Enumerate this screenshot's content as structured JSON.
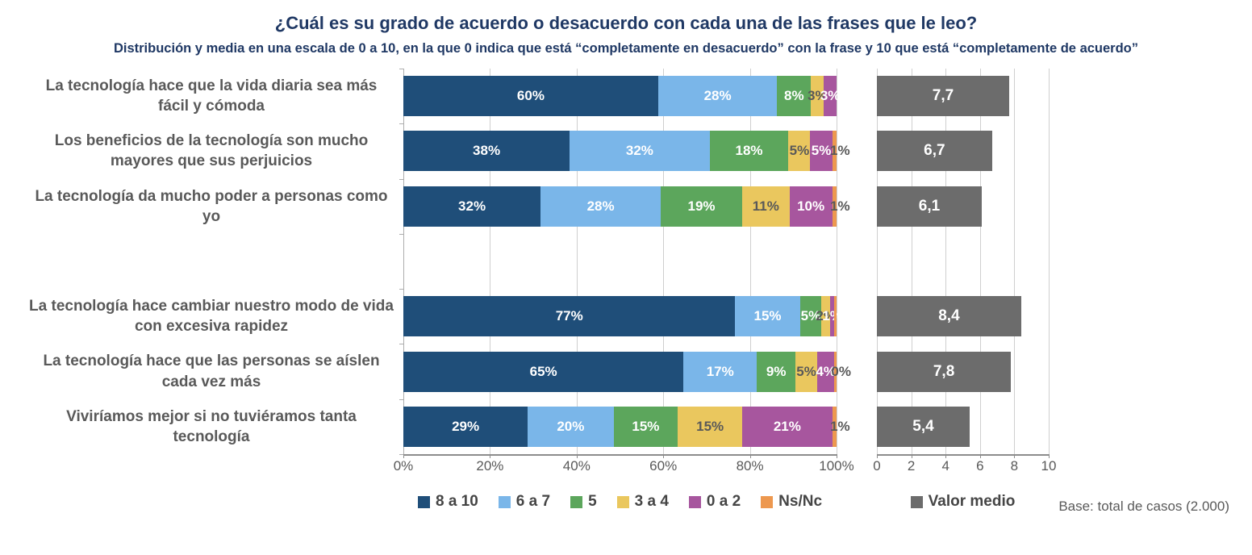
{
  "title": "¿Cuál es su grado de acuerdo o desacuerdo con cada una de las frases que le leo?",
  "subtitle": "Distribución y media en una escala de 0 a 10, en la que 0 indica que está “completamente en desacuerdo” con la frase y 10 que  está “completamente de acuerdo”",
  "base_note": "Base: total de casos  (2.000)",
  "legend": {
    "items": [
      {
        "label": "8 a 10",
        "color": "#1F4E79"
      },
      {
        "label": "6 a 7",
        "color": "#7AB6E9"
      },
      {
        "label": "5",
        "color": "#5CA65C"
      },
      {
        "label": "3 a 4",
        "color": "#EAC75E"
      },
      {
        "label": "0 a 2",
        "color": "#A7569E"
      },
      {
        "label": "Ns/Nc",
        "color": "#ED984F"
      }
    ],
    "mean_label": "Valor medio",
    "mean_color": "#6C6C6C"
  },
  "axes": {
    "left_ticks": [
      "0%",
      "20%",
      "40%",
      "60%",
      "80%",
      "100%"
    ],
    "right_ticks": [
      "0",
      "2",
      "4",
      "6",
      "8",
      "10"
    ]
  },
  "rows": [
    {
      "label": "La tecnología hace que la vida diaria sea más fácil y cómoda",
      "segments": [
        {
          "pct": 60,
          "label": "60%"
        },
        {
          "pct": 28,
          "label": "28%"
        },
        {
          "pct": 8,
          "label": "8%"
        },
        {
          "pct": 3,
          "label": "3%"
        },
        {
          "pct": 3,
          "label": "3%"
        },
        {
          "pct": 0,
          "label": ""
        }
      ],
      "mean": 7.7,
      "mean_label": "7,7"
    },
    {
      "label": "Los beneficios de la tecnología son mucho mayores que sus perjuicios",
      "segments": [
        {
          "pct": 38,
          "label": "38%"
        },
        {
          "pct": 32,
          "label": "32%"
        },
        {
          "pct": 18,
          "label": "18%"
        },
        {
          "pct": 5,
          "label": "5%"
        },
        {
          "pct": 5,
          "label": "5%"
        },
        {
          "pct": 1,
          "label": "1%"
        }
      ],
      "mean": 6.7,
      "mean_label": "6,7"
    },
    {
      "label": "La tecnología da mucho poder a personas como yo",
      "segments": [
        {
          "pct": 32,
          "label": "32%"
        },
        {
          "pct": 28,
          "label": "28%"
        },
        {
          "pct": 19,
          "label": "19%"
        },
        {
          "pct": 11,
          "label": "11%"
        },
        {
          "pct": 10,
          "label": "10%"
        },
        {
          "pct": 1,
          "label": "1%"
        }
      ],
      "mean": 6.1,
      "mean_label": "6,1"
    },
    {
      "label": "La tecnología hace cambiar nuestro modo de vida con excesiva rapidez",
      "segments": [
        {
          "pct": 77,
          "label": "77%"
        },
        {
          "pct": 15,
          "label": "15%"
        },
        {
          "pct": 5,
          "label": "5%"
        },
        {
          "pct": 2,
          "label": "2%"
        },
        {
          "pct": 1,
          "label": "1%"
        },
        {
          "pct": 0.5,
          "label": ""
        }
      ],
      "mean": 8.4,
      "mean_label": "8,4"
    },
    {
      "label": "La tecnología hace que las personas se aíslen cada vez más",
      "segments": [
        {
          "pct": 65,
          "label": "65%"
        },
        {
          "pct": 17,
          "label": "17%"
        },
        {
          "pct": 9,
          "label": "9%"
        },
        {
          "pct": 5,
          "label": "5%"
        },
        {
          "pct": 4,
          "label": "4%"
        },
        {
          "pct": 0.5,
          "label": "0%"
        }
      ],
      "mean": 7.8,
      "mean_label": "7,8"
    },
    {
      "label": "Viviríamos mejor si no tuviéramos tanta tecnología",
      "segments": [
        {
          "pct": 29,
          "label": "29%"
        },
        {
          "pct": 20,
          "label": "20%"
        },
        {
          "pct": 15,
          "label": "15%"
        },
        {
          "pct": 15,
          "label": "15%"
        },
        {
          "pct": 21,
          "label": "21%"
        },
        {
          "pct": 1,
          "label": "1%"
        }
      ],
      "mean": 5.4,
      "mean_label": "5,4"
    }
  ],
  "chart_data": {
    "type": "bar",
    "orientation": "horizontal",
    "stacked": true,
    "title": "¿Cuál es su grado de acuerdo o desacuerdo con cada una de las frases que le leo?",
    "subtitle": "Distribución y media en una escala de 0 a 10, en la que 0 indica que está “completamente en desacuerdo” con la frase y 10 que  está “completamente de acuerdo”",
    "categories": [
      "La tecnología hace que la vida diaria sea más fácil y cómoda",
      "Los beneficios de la tecnología son mucho mayores que sus perjuicios",
      "La tecnología da mucho poder a personas como yo",
      "La tecnología hace cambiar nuestro modo de vida con excesiva rapidez",
      "La tecnología hace que las personas se aíslen cada vez más",
      "Viviríamos mejor si no tuviéramos tanta tecnología"
    ],
    "series": [
      {
        "name": "8 a 10",
        "color": "#1F4E79",
        "values": [
          60,
          38,
          32,
          77,
          65,
          29
        ]
      },
      {
        "name": "6 a 7",
        "color": "#7AB6E9",
        "values": [
          28,
          32,
          28,
          15,
          17,
          20
        ]
      },
      {
        "name": "5",
        "color": "#5CA65C",
        "values": [
          8,
          18,
          19,
          5,
          9,
          15
        ]
      },
      {
        "name": "3 a 4",
        "color": "#EAC75E",
        "values": [
          3,
          5,
          11,
          2,
          5,
          15
        ]
      },
      {
        "name": "0 a 2",
        "color": "#A7569E",
        "values": [
          3,
          5,
          10,
          1,
          4,
          21
        ]
      },
      {
        "name": "Ns/Nc",
        "color": "#ED984F",
        "values": [
          0,
          1,
          1,
          0,
          0,
          1
        ]
      }
    ],
    "secondary_chart": {
      "name": "Valor medio",
      "type": "bar",
      "color": "#6C6C6C",
      "values": [
        7.7,
        6.7,
        6.1,
        8.4,
        7.8,
        5.4
      ],
      "xlim": [
        0,
        10
      ],
      "ticks": [
        0,
        2,
        4,
        6,
        8,
        10
      ]
    },
    "x_axis": {
      "range_pct": [
        0,
        100
      ],
      "ticks": [
        "0%",
        "20%",
        "40%",
        "60%",
        "80%",
        "100%"
      ]
    },
    "legend_position": "bottom",
    "grid": "vertical",
    "note": "Base: total de casos  (2.000)"
  }
}
